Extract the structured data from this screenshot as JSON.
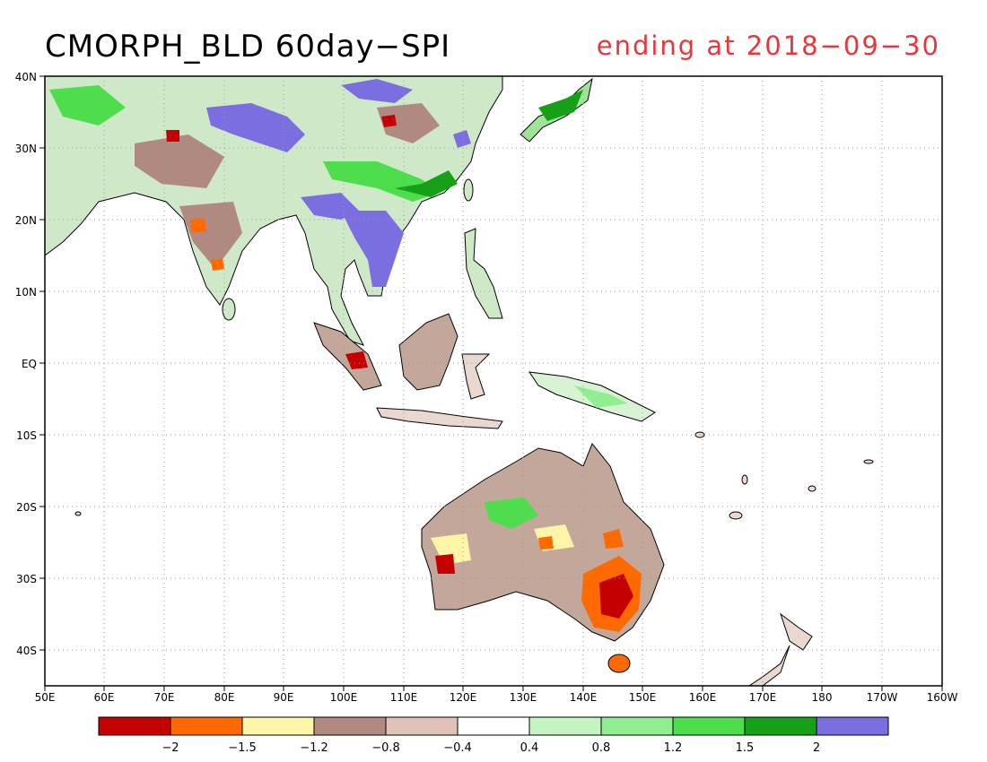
{
  "title": "CMORPH_BLD 60day−SPI",
  "subtitle": "ending at 2018−09−30",
  "map": {
    "lon_labels": [
      "50E",
      "60E",
      "70E",
      "80E",
      "90E",
      "100E",
      "110E",
      "120E",
      "130E",
      "140E",
      "150E",
      "160E",
      "170E",
      "180",
      "170W",
      "160W"
    ],
    "lat_labels": [
      "40N",
      "30N",
      "20N",
      "10N",
      "EQ",
      "10S",
      "20S",
      "30S",
      "40S"
    ]
  },
  "legend": {
    "colors": [
      "#c40000",
      "#ff6a00",
      "#fff5a8",
      "#b08a80",
      "#e0c2b8",
      "#ffffff",
      "#c4f5c0",
      "#90ee90",
      "#4ddd4d",
      "#16a016",
      "#7a6ee0"
    ],
    "labels": [
      "−2",
      "−1.5",
      "−1.2",
      "−0.8",
      "−0.4",
      "0.4",
      "0.8",
      "1.2",
      "1.5",
      "2"
    ]
  }
}
